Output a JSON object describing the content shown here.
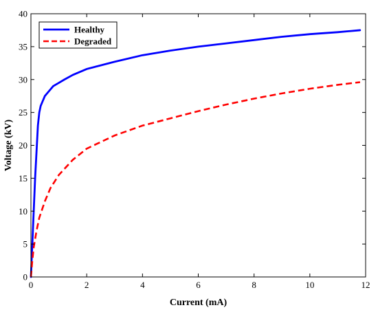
{
  "chart_data": {
    "type": "line",
    "title": "",
    "xlabel": "Current (mA)",
    "ylabel": "Voltage (kV)",
    "xlim": [
      0,
      12
    ],
    "ylim": [
      0,
      40
    ],
    "xticks": [
      0,
      2,
      4,
      6,
      8,
      10,
      12
    ],
    "yticks": [
      0,
      5,
      10,
      15,
      20,
      25,
      30,
      35,
      40
    ],
    "grid": false,
    "legend_position": "top-left",
    "series": [
      {
        "name": "Healthy",
        "color": "#0000ff",
        "style": "solid",
        "x": [
          0,
          0.05,
          0.1,
          0.15,
          0.2,
          0.25,
          0.3,
          0.35,
          0.4,
          0.5,
          0.6,
          0.8,
          1.0,
          1.2,
          1.5,
          2.0,
          3.0,
          4.0,
          5.0,
          6.0,
          7.0,
          8.0,
          9.0,
          10.0,
          11.0,
          11.8
        ],
        "y": [
          0,
          5,
          10,
          15,
          19,
          23,
          25,
          26,
          26.5,
          27.5,
          28,
          29,
          29.5,
          30,
          30.7,
          31.6,
          32.7,
          33.7,
          34.4,
          35.0,
          35.5,
          36.0,
          36.5,
          36.9,
          37.2,
          37.5
        ]
      },
      {
        "name": "Degraded",
        "color": "#ff0000",
        "style": "dashed",
        "x": [
          0,
          0.05,
          0.1,
          0.2,
          0.3,
          0.5,
          0.7,
          1.0,
          1.5,
          2.0,
          3.0,
          4.0,
          5.0,
          6.0,
          7.0,
          8.0,
          9.0,
          10.0,
          11.0,
          11.8
        ],
        "y": [
          0,
          2.5,
          4.5,
          7,
          9,
          11.5,
          13.5,
          15.5,
          17.8,
          19.5,
          21.5,
          23,
          24.1,
          25.2,
          26.2,
          27.1,
          27.9,
          28.6,
          29.2,
          29.6
        ]
      }
    ]
  }
}
